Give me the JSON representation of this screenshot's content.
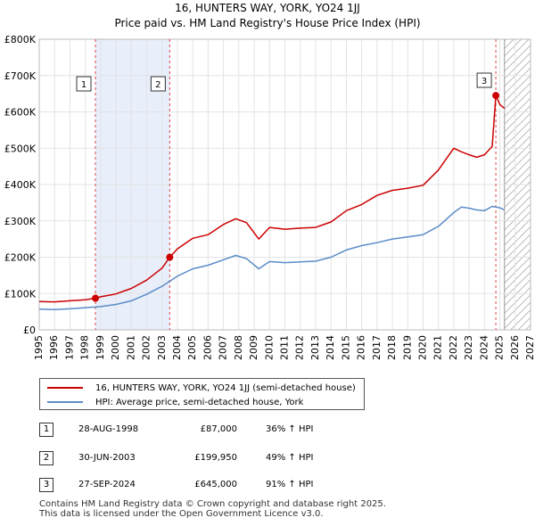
{
  "chart_data": {
    "type": "line",
    "title": "16, HUNTERS WAY, YORK, YO24 1JJ",
    "subtitle": "Price paid vs. HM Land Registry's House Price Index (HPI)",
    "ylim": [
      0,
      800000
    ],
    "xlim": [
      1995,
      2027
    ],
    "y_ticks": [
      0,
      100000,
      200000,
      300000,
      400000,
      500000,
      600000,
      700000,
      800000
    ],
    "y_tick_labels": [
      "£0",
      "£100K",
      "£200K",
      "£300K",
      "£400K",
      "£500K",
      "£600K",
      "£700K",
      "£800K"
    ],
    "x_ticks": [
      1995,
      1996,
      1997,
      1998,
      1999,
      2000,
      2001,
      2002,
      2003,
      2004,
      2005,
      2006,
      2007,
      2008,
      2009,
      2010,
      2011,
      2012,
      2013,
      2014,
      2015,
      2016,
      2017,
      2018,
      2019,
      2020,
      2021,
      2022,
      2023,
      2024,
      2025,
      2026,
      2027
    ],
    "shaded_period": [
      1998.66,
      2003.5
    ],
    "future_from": 2025.3,
    "series": [
      {
        "name": "16, HUNTERS WAY, YORK, YO24 1JJ (semi-detached house)",
        "color": "#cc0000",
        "x": [
          1995,
          1996,
          1997,
          1998,
          1998.66,
          1999,
          2000,
          2001,
          2002,
          2003,
          2003.5,
          2004,
          2005,
          2006,
          2007,
          2007.8,
          2008.5,
          2009.3,
          2010,
          2011,
          2012,
          2013,
          2014,
          2015,
          2016,
          2017,
          2018,
          2019,
          2020,
          2021,
          2021.7,
          2022,
          2022.5,
          2023,
          2023.5,
          2024,
          2024.5,
          2024.74,
          2025,
          2025.3
        ],
        "values": [
          78000,
          77000,
          80000,
          83000,
          87000,
          91000,
          99000,
          114000,
          137000,
          170000,
          199950,
          223000,
          252000,
          262000,
          290000,
          306000,
          295000,
          250000,
          282000,
          277000,
          280000,
          282000,
          297000,
          328000,
          345000,
          370000,
          384000,
          390000,
          398000,
          440000,
          482000,
          500000,
          490000,
          482000,
          475000,
          482000,
          505000,
          645000,
          620000,
          610000
        ]
      },
      {
        "name": "HPI: Average price, semi-detached house, York",
        "color": "#5b8cc8",
        "x": [
          1995,
          1996,
          1997,
          1998,
          1999,
          2000,
          2001,
          2002,
          2003,
          2004,
          2005,
          2006,
          2007,
          2007.8,
          2008.5,
          2009.3,
          2010,
          2011,
          2012,
          2013,
          2014,
          2015,
          2016,
          2017,
          2018,
          2019,
          2020,
          2021,
          2022,
          2022.5,
          2023,
          2023.5,
          2024,
          2024.5,
          2025,
          2025.3
        ],
        "values": [
          57000,
          56000,
          58000,
          61000,
          64000,
          70000,
          80000,
          98000,
          120000,
          148000,
          168000,
          178000,
          193000,
          205000,
          196000,
          168000,
          188000,
          185000,
          187000,
          189000,
          200000,
          220000,
          232000,
          240000,
          250000,
          256000,
          262000,
          285000,
          323000,
          338000,
          335000,
          330000,
          328000,
          340000,
          336000,
          330000
        ]
      }
    ],
    "sales": [
      {
        "num": "1",
        "year": 1998.66,
        "value": 87000,
        "date": "28-AUG-1998",
        "price": "£87,000",
        "pct": "36% ↑ HPI"
      },
      {
        "num": "2",
        "year": 2003.5,
        "value": 199950,
        "date": "30-JUN-2003",
        "price": "£199,950",
        "pct": "49% ↑ HPI"
      },
      {
        "num": "3",
        "year": 2024.74,
        "value": 645000,
        "date": "27-SEP-2024",
        "price": "£645,000",
        "pct": "91% ↑ HPI"
      }
    ]
  },
  "legend": {
    "property_label": "16, HUNTERS WAY, YORK, YO24 1JJ (semi-detached house)",
    "hpi_label": "HPI: Average price, semi-detached house, York"
  },
  "footer": {
    "line1": "Contains HM Land Registry data © Crown copyright and database right 2025.",
    "line2": "This data is licensed under the Open Government Licence v3.0."
  }
}
